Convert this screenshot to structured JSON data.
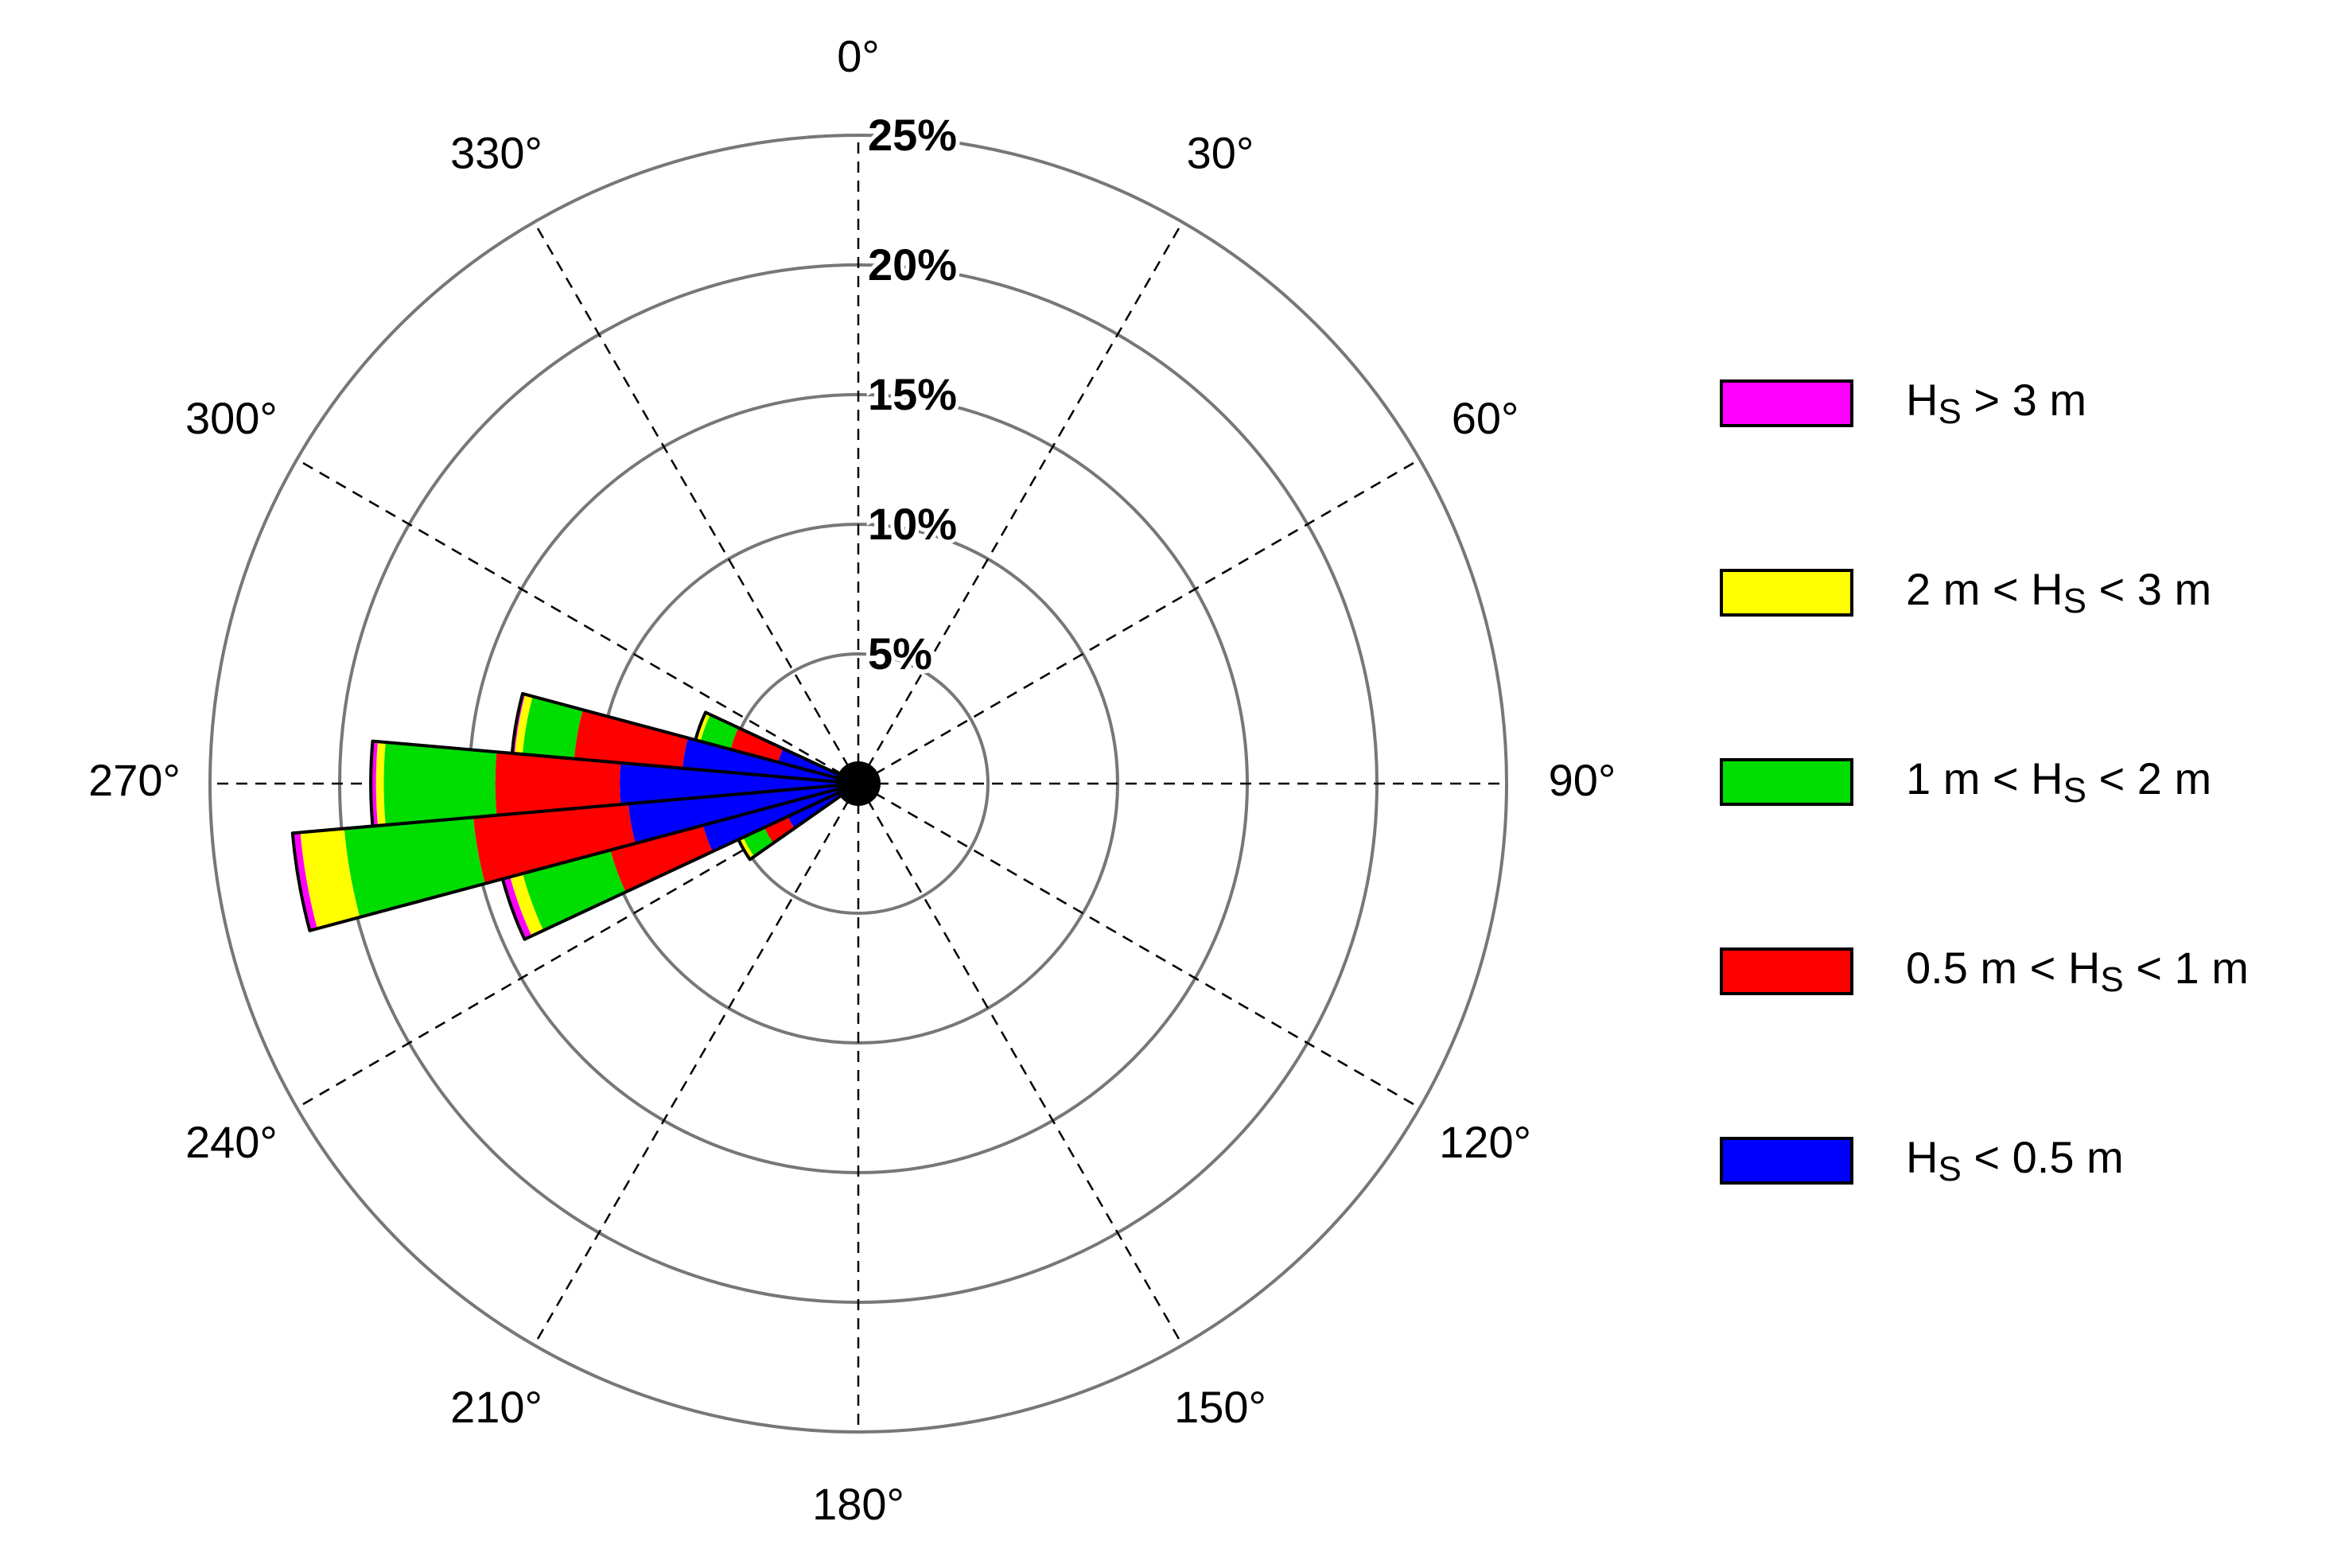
{
  "chart_data": {
    "type": "rose",
    "x": [
      240,
      250,
      260,
      270,
      280,
      290
    ],
    "series": [
      {
        "name": "HS > 3 m",
        "color": "#ff00ff",
        "values": [
          0,
          0.3,
          0.3,
          0.2,
          0.1,
          0
        ]
      },
      {
        "name": "2 m < HS < 3 m",
        "color": "#ffff00",
        "values": [
          0.2,
          0.5,
          1.7,
          0.3,
          0.3,
          0.2
        ]
      },
      {
        "name": "1 m < HS < 2 m",
        "color": "#00dd00",
        "values": [
          0.9,
          3.5,
          5.0,
          4.3,
          2.0,
          1.2
        ]
      },
      {
        "name": "0.5 m < HS < 1 m",
        "color": "#ff0000",
        "values": [
          1.0,
          3.7,
          6.0,
          4.8,
          4.2,
          1.9
        ]
      },
      {
        "name": "HS < 0.5 m",
        "color": "#0000ff",
        "values": [
          3.0,
          6.2,
          8.9,
          9.2,
          6.8,
          3.2
        ]
      }
    ],
    "sector_width": 10,
    "rlim": [
      0,
      25
    ],
    "rticks": [
      {
        "value": 5,
        "label": "5%"
      },
      {
        "value": 10,
        "label": "10%"
      },
      {
        "value": 15,
        "label": "15%"
      },
      {
        "value": 20,
        "label": "20%"
      },
      {
        "value": 25,
        "label": "25%"
      }
    ],
    "thetaticks": [
      {
        "value": 0,
        "label": "0°"
      },
      {
        "value": 30,
        "label": "30°"
      },
      {
        "value": 60,
        "label": "60°"
      },
      {
        "value": 90,
        "label": "90°"
      },
      {
        "value": 120,
        "label": "120°"
      },
      {
        "value": 150,
        "label": "150°"
      },
      {
        "value": 180,
        "label": "180°"
      },
      {
        "value": 210,
        "label": "210°"
      },
      {
        "value": 240,
        "label": "240°"
      },
      {
        "value": 270,
        "label": "270°"
      },
      {
        "value": 300,
        "label": "300°"
      },
      {
        "value": 330,
        "label": "330°"
      }
    ],
    "grid": true,
    "legend": "right"
  }
}
